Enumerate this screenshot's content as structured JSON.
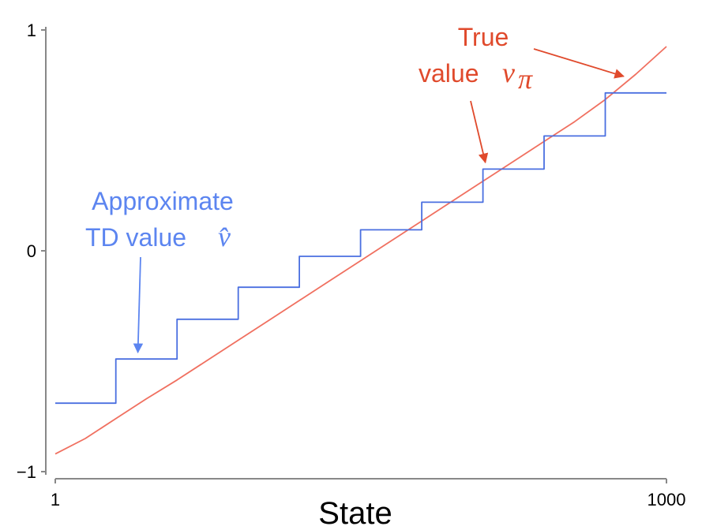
{
  "chart_data": {
    "type": "line",
    "xlabel": "State",
    "ylabel": "",
    "xlim": [
      1,
      1000
    ],
    "ylim": [
      -1,
      1
    ],
    "x_ticks": [
      {
        "value": 1,
        "label": "1"
      },
      {
        "value": 1000,
        "label": "1000"
      }
    ],
    "y_ticks": [
      {
        "value": 1,
        "label": "1"
      },
      {
        "value": 0,
        "label": "0"
      },
      {
        "value": -1,
        "label": "−1"
      }
    ],
    "grid": false,
    "series": [
      {
        "key": "true",
        "color": "#f07060",
        "x": [
          1,
          50,
          100,
          150,
          200,
          250,
          300,
          350,
          400,
          450,
          500,
          550,
          600,
          650,
          700,
          750,
          800,
          850,
          900,
          950,
          1000
        ],
        "y": [
          -0.92,
          -0.85,
          -0.76,
          -0.67,
          -0.585,
          -0.495,
          -0.405,
          -0.315,
          -0.225,
          -0.135,
          -0.045,
          0.045,
          0.135,
          0.225,
          0.315,
          0.405,
          0.495,
          0.585,
          0.685,
          0.8,
          0.925
        ]
      },
      {
        "key": "approx",
        "color": "#4a6fe0",
        "x": [
          1,
          100,
          100,
          200,
          200,
          300,
          300,
          400,
          400,
          500,
          500,
          600,
          600,
          700,
          700,
          800,
          800,
          900,
          900,
          1000
        ],
        "y": [
          -0.69,
          -0.69,
          -0.49,
          -0.49,
          -0.31,
          -0.31,
          -0.165,
          -0.165,
          -0.025,
          -0.025,
          0.095,
          0.095,
          0.22,
          0.22,
          0.37,
          0.37,
          0.52,
          0.52,
          0.715,
          0.715
        ]
      }
    ],
    "annotations": [
      {
        "key": "true",
        "color": "#e04a2c",
        "line1": "True",
        "line2": "value",
        "symbol": "v",
        "subscript": "π",
        "arrow_targets": [
          {
            "x": 930,
            "y": 0.79
          },
          {
            "x": 704,
            "y": 0.4
          }
        ]
      },
      {
        "key": "approx",
        "color": "#5c85f0",
        "line1": "Approximate",
        "line2": "TD value",
        "symbol": "v̂",
        "subscript": "",
        "arrow_targets": [
          {
            "x": 136,
            "y": -0.46
          }
        ]
      }
    ]
  }
}
